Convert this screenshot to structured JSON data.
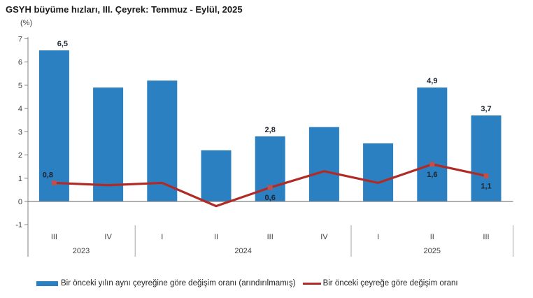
{
  "chart_data": {
    "type": "bar+line",
    "title": "GSYH büyüme hızları, III. Çeyrek: Temmuz - Eylül, 2025",
    "unit_label": "(%)",
    "ylim": [
      -1,
      7
    ],
    "yticks": [
      7,
      6,
      5,
      4,
      3,
      2,
      1,
      0,
      -1
    ],
    "grid": false,
    "legend_position": "bottom",
    "categories": [
      "III",
      "IV",
      "I",
      "II",
      "III",
      "IV",
      "I",
      "II",
      "III"
    ],
    "year_groups": [
      {
        "label": "2023",
        "from": 0,
        "to": 1
      },
      {
        "label": "2024",
        "from": 2,
        "to": 5
      },
      {
        "label": "2025",
        "from": 6,
        "to": 8
      }
    ],
    "series": [
      {
        "name": "Bir önceki yılın aynı çeyreğine göre değişim oranı (arındırılmamış)",
        "type": "bar",
        "color": "#2a80c1",
        "values": [
          6.5,
          4.9,
          5.2,
          2.2,
          2.8,
          3.2,
          2.5,
          4.9,
          3.7
        ]
      },
      {
        "name": "Bir önceki çeyreğe göre değişim oranı",
        "type": "line",
        "color": "#b12a25",
        "marker_color": "#c0504d",
        "values": [
          0.8,
          0.7,
          0.8,
          -0.2,
          0.6,
          1.3,
          0.8,
          1.6,
          1.1
        ]
      }
    ],
    "bar_labels": [
      {
        "index": 0,
        "text": "6,5",
        "position": "above-right"
      },
      {
        "index": 4,
        "text": "2,8",
        "position": "above"
      },
      {
        "index": 7,
        "text": "4,9",
        "position": "above"
      },
      {
        "index": 8,
        "text": "3,7",
        "position": "above"
      }
    ],
    "line_labels": [
      {
        "index": 0,
        "text": "0,8",
        "position": "above-left"
      },
      {
        "index": 4,
        "text": "0,6",
        "position": "below"
      },
      {
        "index": 7,
        "text": "1,6",
        "position": "below"
      },
      {
        "index": 8,
        "text": "1,1",
        "position": "below"
      }
    ],
    "colors": {
      "axis": "#808080",
      "separator": "#a6a6a6",
      "tick_text": "#404040",
      "data_label": "#1e2430",
      "title_text": "#1a1a1a"
    }
  }
}
